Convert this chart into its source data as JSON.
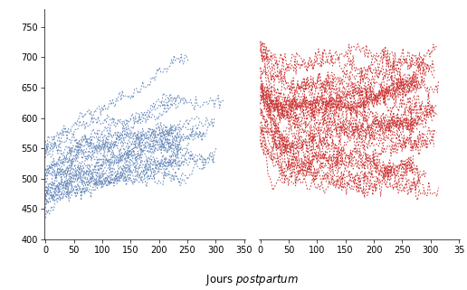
{
  "title": "",
  "xlabel_plain": "Jours ",
  "xlabel_italic": "postpartum",
  "ylim": [
    400,
    780
  ],
  "xlim": [
    0,
    350
  ],
  "yticks": [
    400,
    450,
    500,
    550,
    600,
    650,
    700,
    750
  ],
  "xticks": [
    0,
    50,
    100,
    150,
    200,
    250,
    300,
    350
  ],
  "blue_color": "#6688BB",
  "red_color": "#CC3333",
  "blue_seed": 7,
  "red_seed": 13,
  "num_blue": 22,
  "num_red": 28,
  "linewidth": 0.65,
  "dashes": [
    2,
    2
  ]
}
